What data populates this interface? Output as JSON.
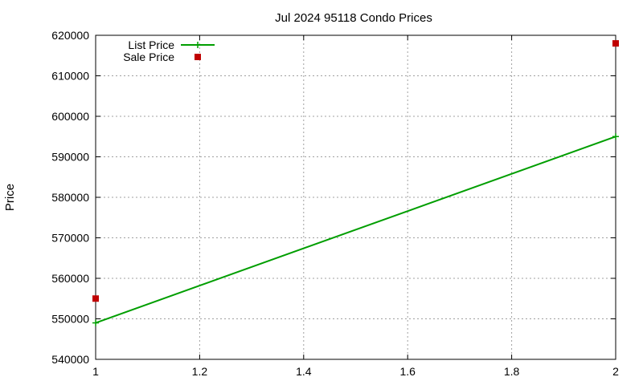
{
  "chart_data": {
    "type": "line",
    "title": "Jul 2024 95118 Condo Prices",
    "xlabel": "",
    "ylabel": "Price",
    "xlim": [
      1,
      2
    ],
    "ylim": [
      540000,
      620000
    ],
    "x_ticks": [
      "1",
      "1.2",
      "1.4",
      "1.6",
      "1.8",
      "2"
    ],
    "y_ticks": [
      "540000",
      "550000",
      "560000",
      "570000",
      "580000",
      "590000",
      "600000",
      "610000",
      "620000"
    ],
    "grid": true,
    "legend": "top-left",
    "series": [
      {
        "name": "List Price",
        "style": "line-points",
        "color": "#009e00",
        "x": [
          1,
          2
        ],
        "values": [
          549000,
          595000
        ]
      },
      {
        "name": "Sale Price",
        "style": "points",
        "color": "#c00000",
        "x": [
          1,
          2
        ],
        "values": [
          555000,
          618000
        ]
      }
    ]
  }
}
